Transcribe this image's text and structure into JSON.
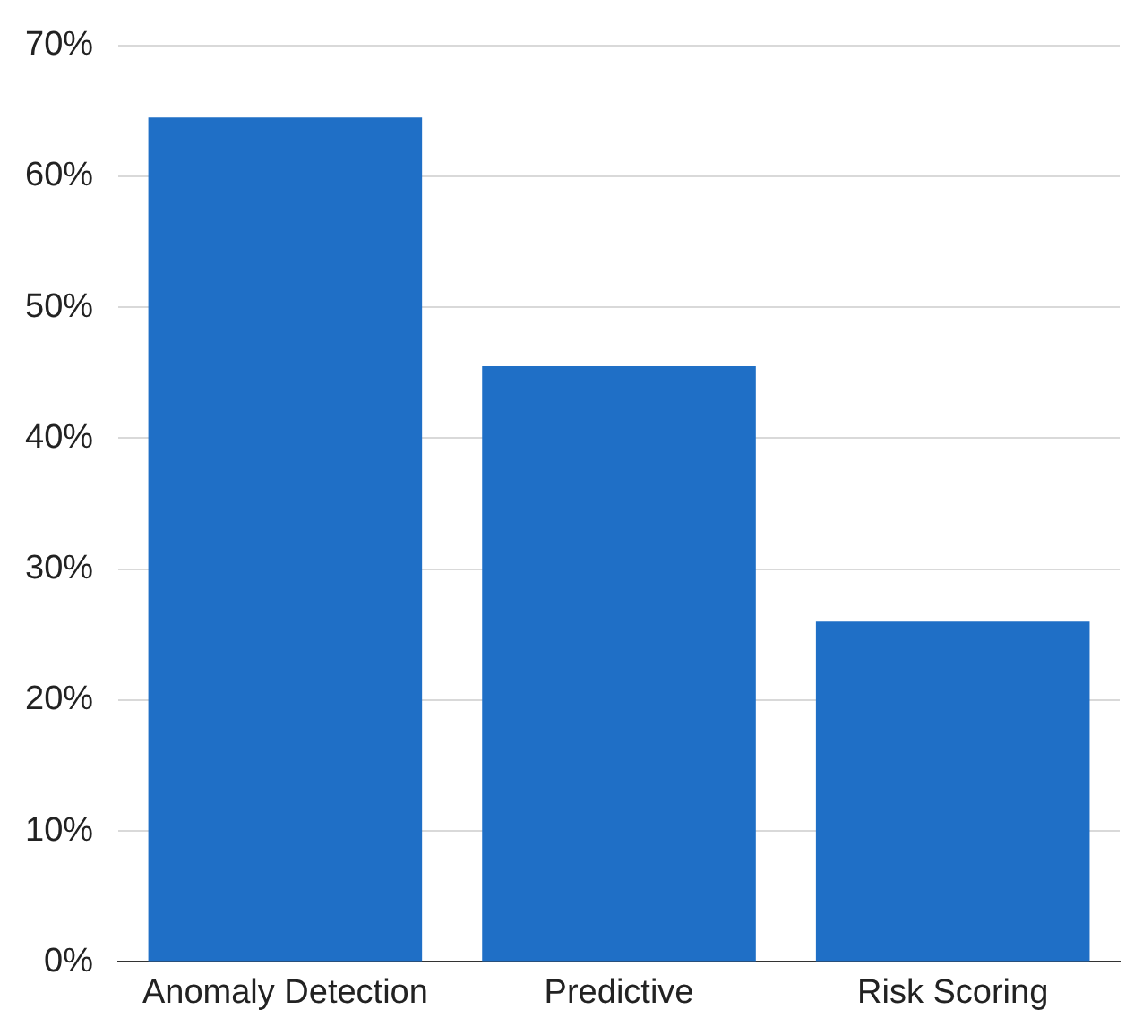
{
  "chart_data": {
    "type": "bar",
    "categories": [
      "Anomaly Detection",
      "Predictive",
      "Risk Scoring"
    ],
    "values": [
      64.5,
      45.5,
      26
    ],
    "color": "#1f6fc6",
    "ylim": [
      0,
      70
    ],
    "yticks": [
      {
        "value": 0,
        "label": "0%"
      },
      {
        "value": 10,
        "label": "10%"
      },
      {
        "value": 20,
        "label": "20%"
      },
      {
        "value": 30,
        "label": "30%"
      },
      {
        "value": 40,
        "label": "40%"
      },
      {
        "value": 50,
        "label": "50%"
      },
      {
        "value": 60,
        "label": "60%"
      },
      {
        "value": 70,
        "label": "70%"
      }
    ],
    "grid": "y"
  }
}
